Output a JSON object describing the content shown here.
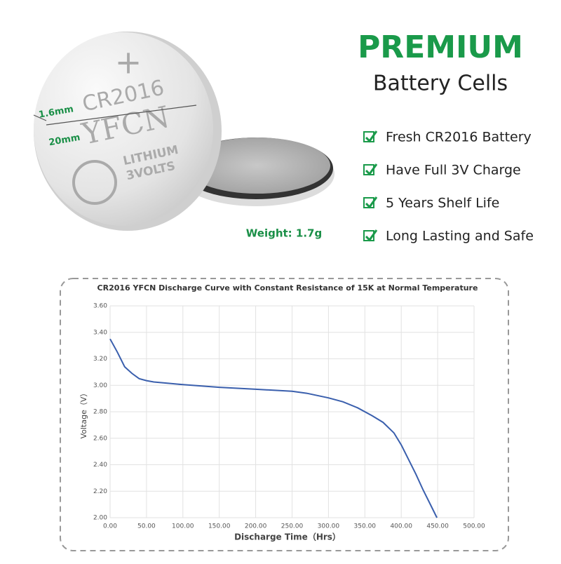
{
  "header": {
    "title": "PREMIUM",
    "subtitle": "Battery Cells"
  },
  "features": [
    "Fresh CR2016 Battery",
    "Have Full 3V Charge",
    "5 Years Shelf Life",
    "Long Lasting and Safe"
  ],
  "battery": {
    "plus": "+",
    "model": "CR2016",
    "brand": "YFCN",
    "chem": "LITHIUM",
    "volts": "3VOLTS",
    "thickness": "1.6mm",
    "diameter": "20mm",
    "weight": "Weight: 1.7g"
  },
  "chart_data": {
    "type": "line",
    "title": "CR2016 YFCN Discharge Curve with Constant Resistance of 15K at Normal Temperature",
    "x_label": "Discharge Time（Hrs）",
    "y_label": "Voltage（V）",
    "x": [
      0,
      10,
      20,
      30,
      40,
      50,
      60,
      80,
      100,
      150,
      200,
      250,
      270,
      300,
      320,
      340,
      360,
      375,
      390,
      400,
      410,
      420,
      430,
      440,
      449
    ],
    "values": [
      3.35,
      3.25,
      3.14,
      3.09,
      3.05,
      3.035,
      3.025,
      3.015,
      3.005,
      2.985,
      2.97,
      2.955,
      2.94,
      2.905,
      2.875,
      2.83,
      2.77,
      2.72,
      2.64,
      2.55,
      2.44,
      2.33,
      2.21,
      2.1,
      2.0
    ],
    "color": "#3a5fad",
    "xlim": [
      0,
      500
    ],
    "xticks": [
      {
        "value": 0,
        "label": "0.00"
      },
      {
        "value": 50,
        "label": "50.00"
      },
      {
        "value": 100,
        "label": "100.00"
      },
      {
        "value": 150,
        "label": "150.00"
      },
      {
        "value": 200,
        "label": "200.00"
      },
      {
        "value": 250,
        "label": "250.00"
      },
      {
        "value": 300,
        "label": "300.00"
      },
      {
        "value": 350,
        "label": "350.00"
      },
      {
        "value": 400,
        "label": "400.00"
      },
      {
        "value": 450,
        "label": "450.00"
      },
      {
        "value": 500,
        "label": "500.00"
      }
    ],
    "ylim": [
      2.0,
      3.6
    ],
    "yticks": [
      {
        "value": 2.0,
        "label": "2.00"
      },
      {
        "value": 2.2,
        "label": "2.20"
      },
      {
        "value": 2.4,
        "label": "2.40"
      },
      {
        "value": 2.6,
        "label": "2.60"
      },
      {
        "value": 2.8,
        "label": "2.80"
      },
      {
        "value": 3.0,
        "label": "3.00"
      },
      {
        "value": 3.2,
        "label": "3.20"
      },
      {
        "value": 3.4,
        "label": "3.40"
      },
      {
        "value": 3.6,
        "label": "3.60"
      }
    ],
    "grid": true
  }
}
